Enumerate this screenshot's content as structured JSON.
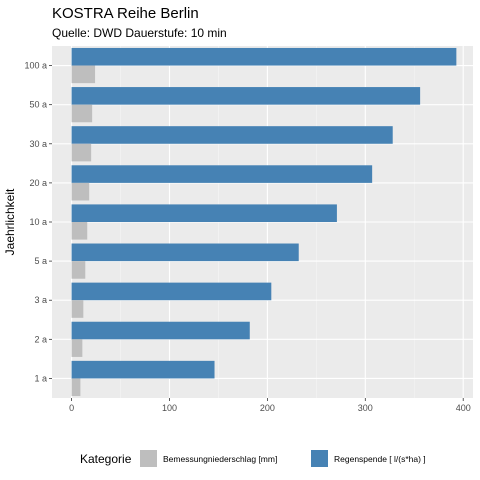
{
  "chart_data": {
    "type": "bar",
    "orientation": "horizontal",
    "title": "KOSTRA Reihe Berlin",
    "subtitle": "Quelle: DWD Dauerstufe: 10 min",
    "xlabel": "",
    "ylabel": "Jaehrlichkeit",
    "categories": [
      "1 a",
      "2 a",
      "3 a",
      "5 a",
      "10 a",
      "20 a",
      "30 a",
      "50 a",
      "100 a"
    ],
    "xlim": [
      -20,
      410
    ],
    "xticks": [
      0,
      100,
      200,
      300,
      400
    ],
    "grid": true,
    "series": [
      {
        "name": "Regenspende [ l/(s*ha) ]",
        "color": "#4682B4",
        "values": [
          146,
          182,
          204,
          232,
          271,
          307,
          328,
          356,
          393
        ]
      },
      {
        "name": "Bemessungniederschlag [mm]",
        "color": "#BEBEBE",
        "values": [
          9,
          11,
          12,
          14,
          16,
          18,
          20,
          21,
          24
        ]
      }
    ],
    "legend": {
      "title": "Kategorie",
      "position": "bottom",
      "entries": [
        {
          "label": "Bemessungniederschlag [mm]",
          "color": "#BEBEBE"
        },
        {
          "label": "Regenspende [ l/(s*ha) ]",
          "color": "#4682B4"
        }
      ]
    }
  }
}
